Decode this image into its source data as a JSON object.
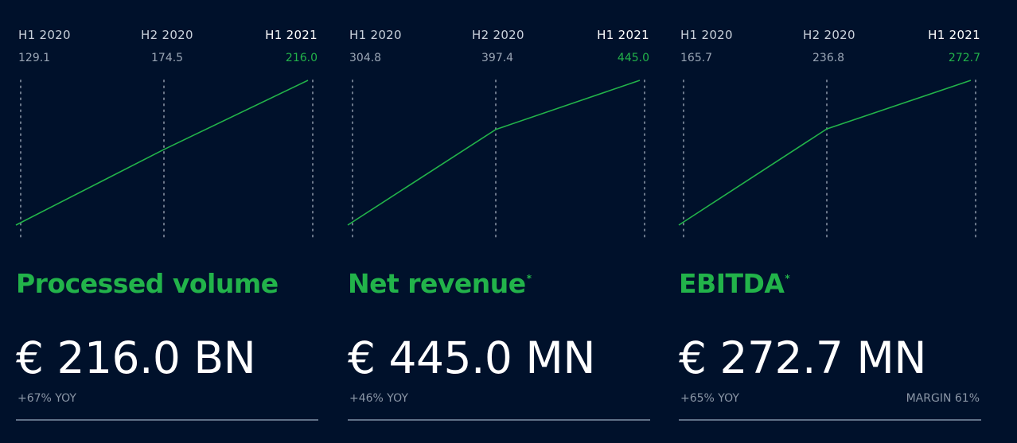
{
  "colors": {
    "background": "#00112b",
    "accent": "#22b34a",
    "rule": "#5f7187",
    "gridline": "#6d7a8c"
  },
  "panels": [
    {
      "categories": [
        "H1 2020",
        "H2 2020",
        "H1 2021"
      ],
      "values_text": [
        "129.1",
        "174.5",
        "216.0"
      ],
      "title": "Processed volume",
      "title_marker": "",
      "headline": "€ 216.0 BN",
      "yoy": "+67% YOY",
      "margin": ""
    },
    {
      "categories": [
        "H1 2020",
        "H2 2020",
        "H1 2021"
      ],
      "values_text": [
        "304.8",
        "397.4",
        "445.0"
      ],
      "title": "Net revenue",
      "title_marker": "*",
      "headline": "€ 445.0 MN",
      "yoy": "+46% YOY",
      "margin": ""
    },
    {
      "categories": [
        "H1 2020",
        "H2 2020",
        "H1 2021"
      ],
      "values_text": [
        "165.7",
        "236.8",
        "272.7"
      ],
      "title": "EBITDA",
      "title_marker": "*",
      "headline": "€ 272.7 MN",
      "yoy": "+65% YOY",
      "margin": "MARGIN 61%"
    }
  ],
  "chart_data": [
    {
      "type": "line",
      "categories": [
        "H1 2020",
        "H2 2020",
        "H1 2021"
      ],
      "values": [
        129.1,
        174.5,
        216.0
      ],
      "title": "Processed volume",
      "grid": true
    },
    {
      "type": "line",
      "categories": [
        "H1 2020",
        "H2 2020",
        "H1 2021"
      ],
      "values": [
        304.8,
        397.4,
        445.0
      ],
      "title": "Net revenue",
      "grid": true
    },
    {
      "type": "line",
      "categories": [
        "H1 2020",
        "H2 2020",
        "H1 2021"
      ],
      "values": [
        165.7,
        236.8,
        272.7
      ],
      "title": "EBITDA",
      "grid": true
    }
  ]
}
